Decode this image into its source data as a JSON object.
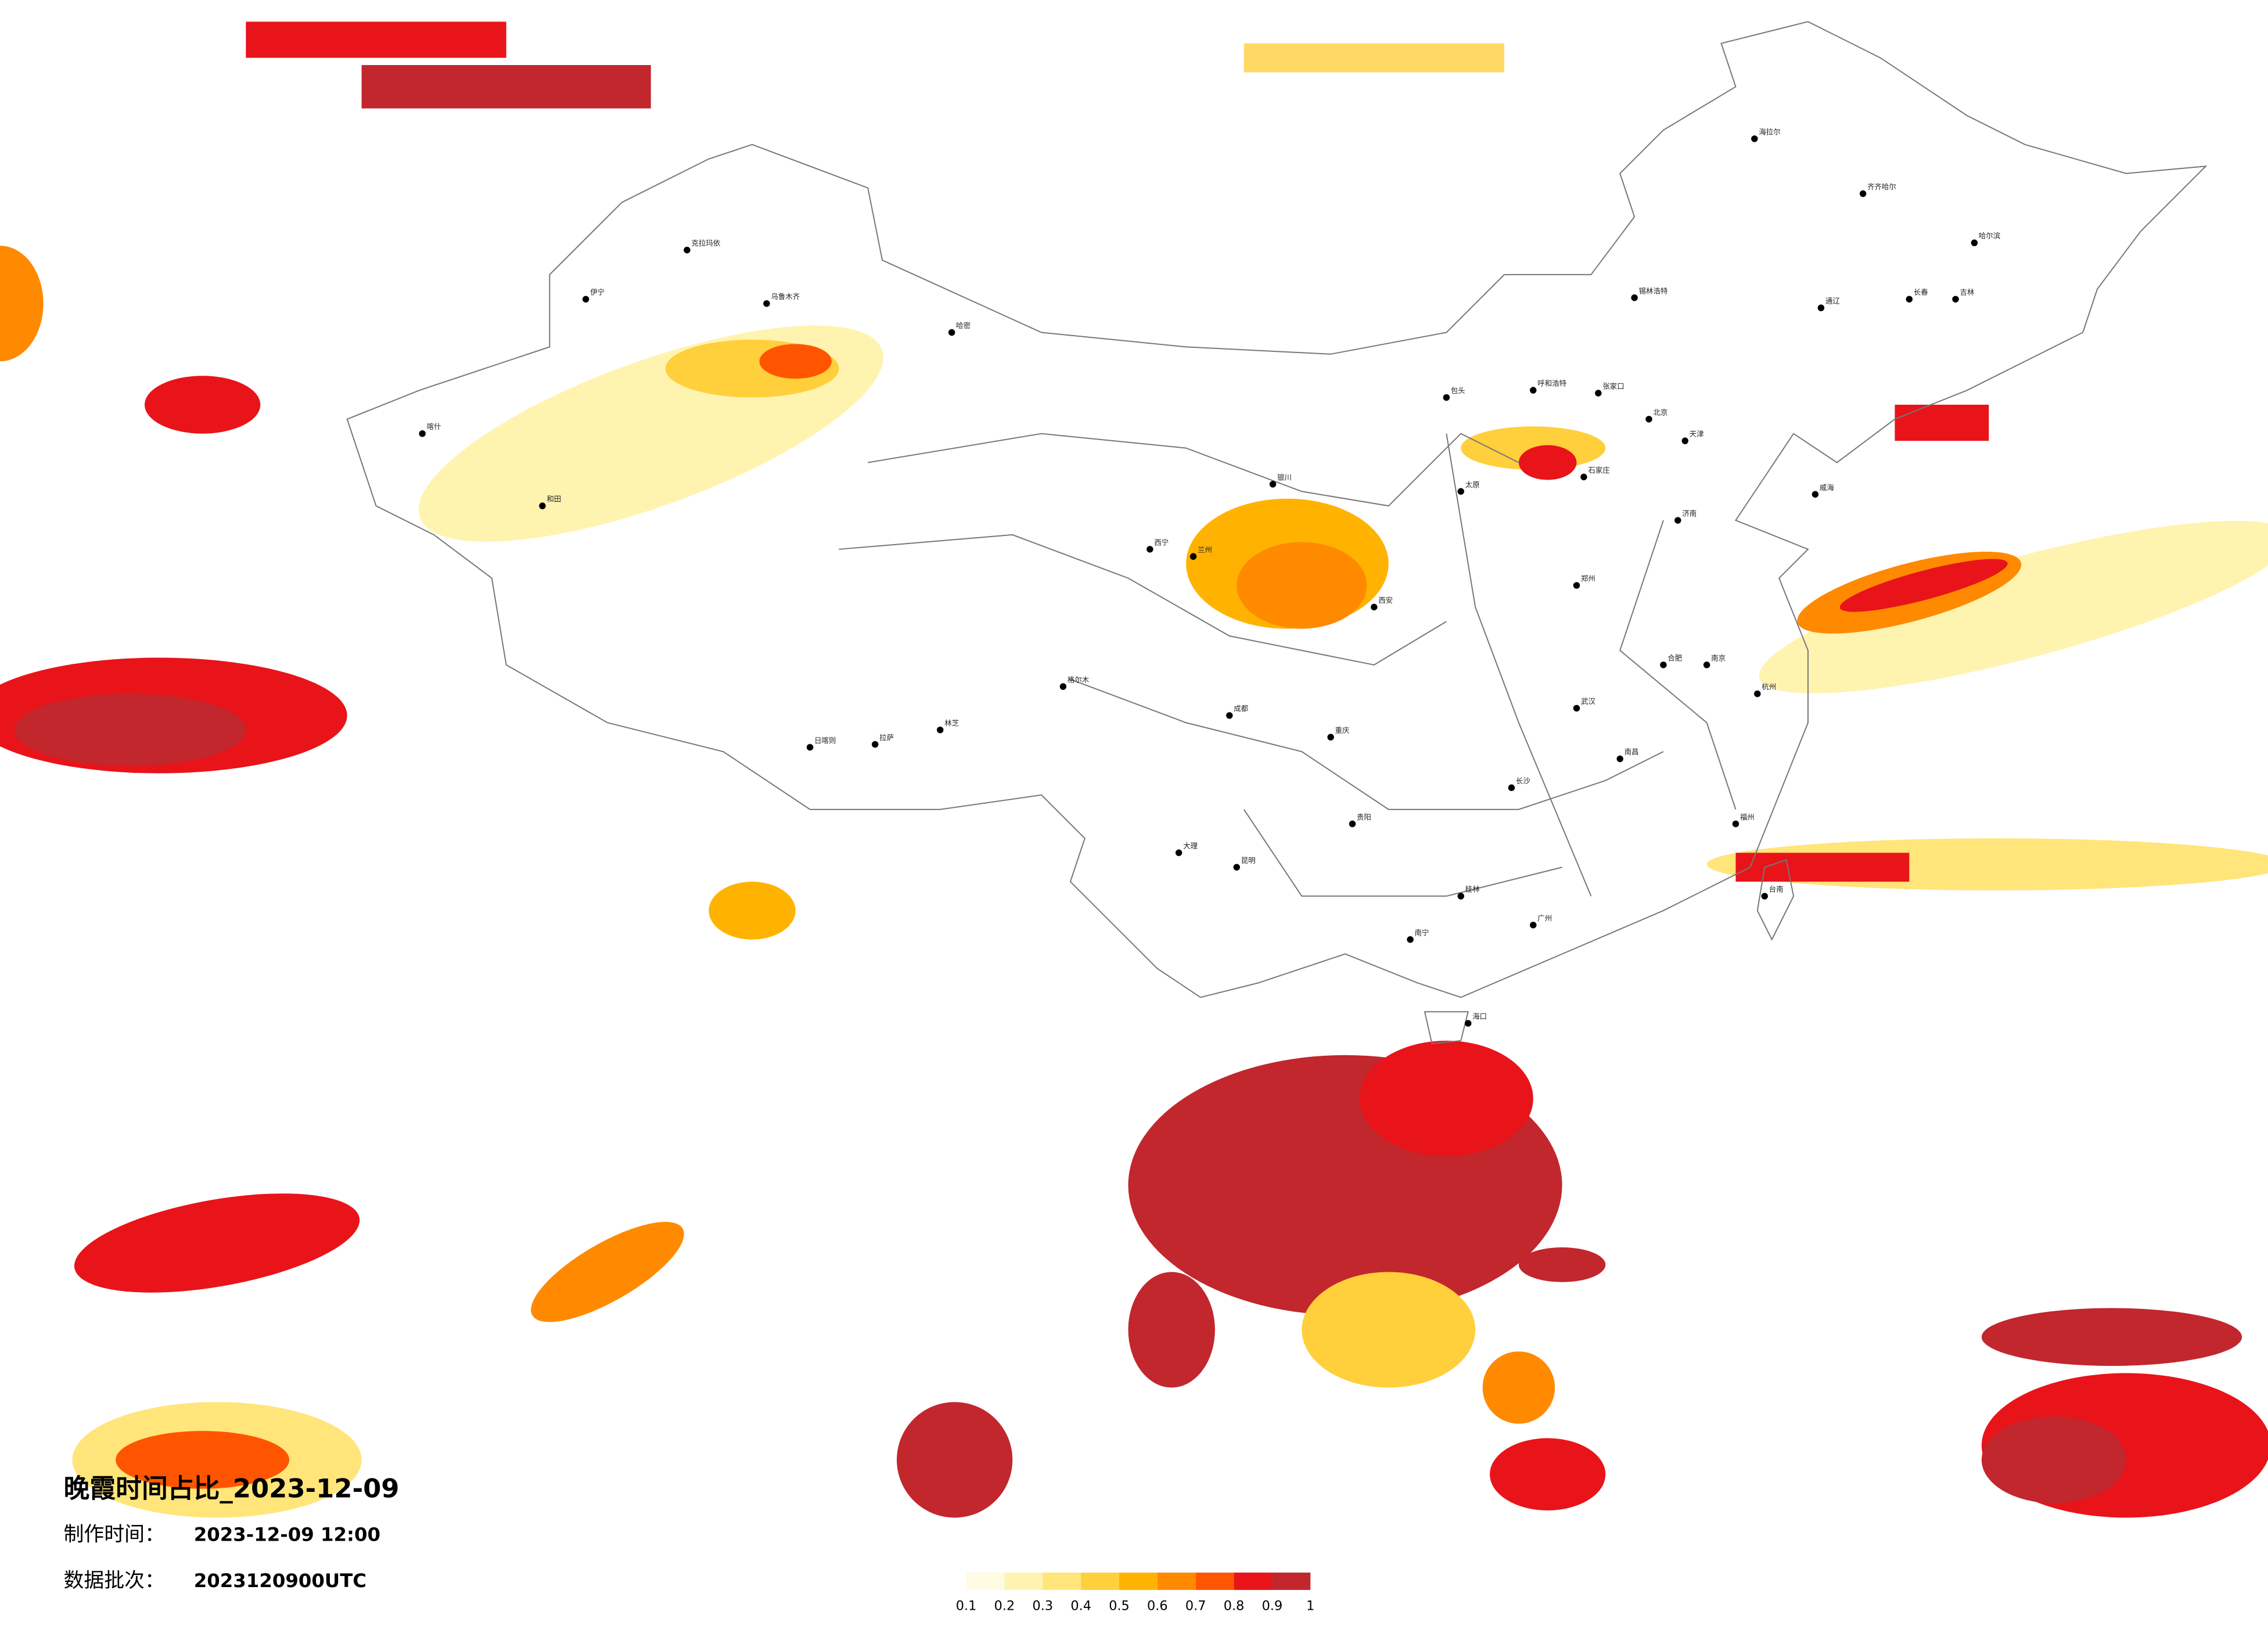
{
  "title": "晚霞时间占比_2023-12-09",
  "production_time": {
    "label": "制作时间：",
    "value": "2023-12-09 12:00"
  },
  "batch": {
    "label": "数据批次：",
    "value": "2023120900UTC"
  },
  "legend": {
    "ticks": [
      0.1,
      0.2,
      0.3,
      0.4,
      0.5,
      0.6,
      0.7,
      0.8,
      0.9,
      1
    ],
    "colors": [
      "#fffbe2",
      "#fff3b0",
      "#ffe57a",
      "#ffcf3c",
      "#ffb300",
      "#ff8a00",
      "#ff5500",
      "#e8141a",
      "#c1272d"
    ]
  },
  "cities": [
    {
      "name": "海拉尔"
    },
    {
      "name": "齐齐哈尔"
    },
    {
      "name": "哈尔滨"
    },
    {
      "name": "长春"
    },
    {
      "name": "吉林"
    },
    {
      "name": "通辽"
    },
    {
      "name": "锡林浩特"
    },
    {
      "name": "呼和浩特"
    },
    {
      "name": "包头"
    },
    {
      "name": "张家口"
    },
    {
      "name": "北京"
    },
    {
      "name": "天津"
    },
    {
      "name": "石家庄"
    },
    {
      "name": "太原"
    },
    {
      "name": "济南"
    },
    {
      "name": "威海"
    },
    {
      "name": "郑州"
    },
    {
      "name": "西安"
    },
    {
      "name": "银川"
    },
    {
      "name": "兰州"
    },
    {
      "name": "西宁"
    },
    {
      "name": "格尔木"
    },
    {
      "name": "乌鲁木齐"
    },
    {
      "name": "克拉玛依"
    },
    {
      "name": "伊宁"
    },
    {
      "name": "喀什"
    },
    {
      "name": "和田"
    },
    {
      "name": "哈密"
    },
    {
      "name": "拉萨"
    },
    {
      "name": "日喀则"
    },
    {
      "name": "林芝"
    },
    {
      "name": "成都"
    },
    {
      "name": "重庆"
    },
    {
      "name": "贵阳"
    },
    {
      "name": "昆明"
    },
    {
      "name": "大理"
    },
    {
      "name": "南宁"
    },
    {
      "name": "桂林"
    },
    {
      "name": "长沙"
    },
    {
      "name": "武汉"
    },
    {
      "name": "南昌"
    },
    {
      "name": "合肥"
    },
    {
      "name": "南京"
    },
    {
      "name": "杭州"
    },
    {
      "name": "福州"
    },
    {
      "name": "广州"
    },
    {
      "name": "海口"
    },
    {
      "name": "台南"
    }
  ]
}
